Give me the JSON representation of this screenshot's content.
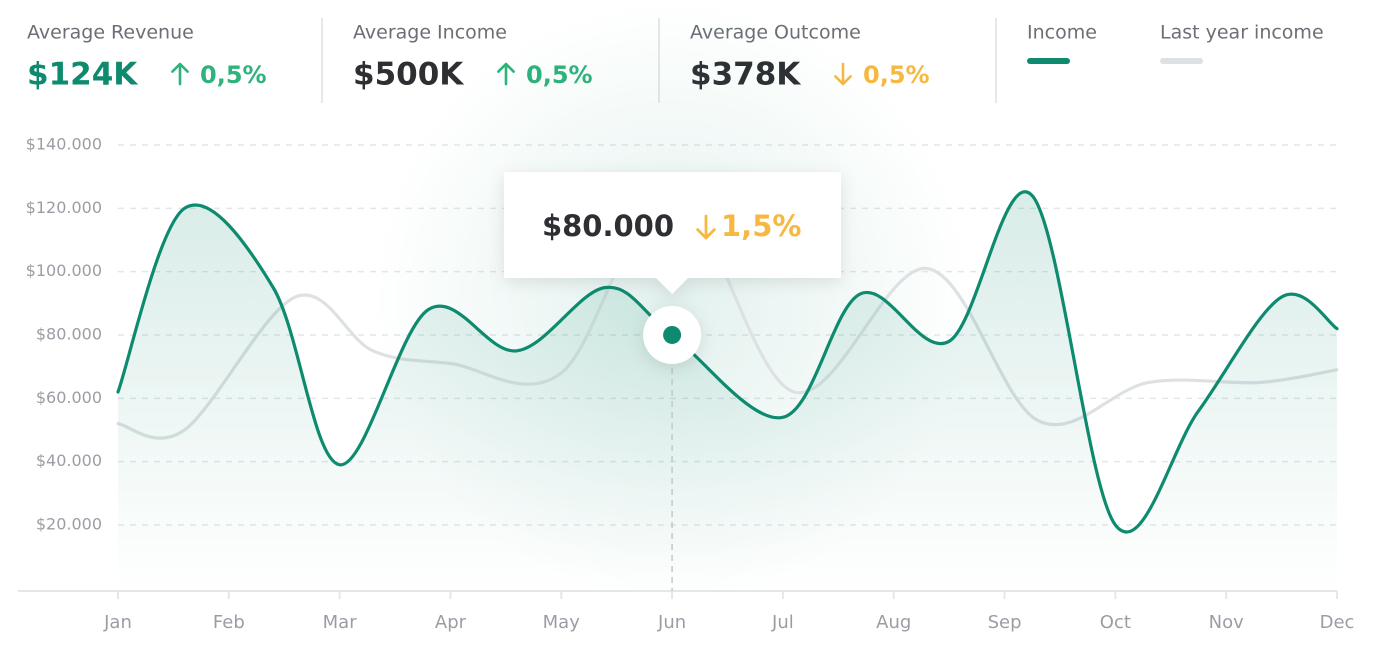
{
  "stats": [
    {
      "label": "Average Revenue",
      "value": "$124K",
      "change": "0,5%",
      "trend": "up",
      "color": "#0e8a6e"
    },
    {
      "label": "Average Income",
      "value": "$500K",
      "change": "0,5%",
      "trend": "up",
      "color": "#2d2f33"
    },
    {
      "label": "Average Outcome",
      "value": "$378K",
      "change": "0,5%",
      "trend": "down",
      "color": "#2d2f33"
    }
  ],
  "chart_data": {
    "type": "line",
    "xlim": [
      0,
      11
    ],
    "xticks": [
      {
        "value": 0,
        "label": "Jan"
      },
      {
        "value": 1,
        "label": "Feb"
      },
      {
        "value": 2,
        "label": "Mar"
      },
      {
        "value": 3,
        "label": "Apr"
      },
      {
        "value": 4,
        "label": "May"
      },
      {
        "value": 5,
        "label": "Jun"
      },
      {
        "value": 6,
        "label": "Jul"
      },
      {
        "value": 7,
        "label": "Aug"
      },
      {
        "value": 8,
        "label": "Sep"
      },
      {
        "value": 9,
        "label": "Oct"
      },
      {
        "value": 10,
        "label": "Nov"
      },
      {
        "value": 11,
        "label": "Dec"
      }
    ],
    "ylim": [
      0,
      140000
    ],
    "yticks": [
      {
        "value": 20000,
        "label": "$20.000"
      },
      {
        "value": 40000,
        "label": "$40.000"
      },
      {
        "value": 60000,
        "label": "$60.000"
      },
      {
        "value": 80000,
        "label": "$80.000"
      },
      {
        "value": 100000,
        "label": "$100.000"
      },
      {
        "value": 120000,
        "label": "$120.000"
      },
      {
        "value": 140000,
        "label": "$140.000"
      }
    ],
    "grid": true,
    "series": [
      {
        "name": "Income",
        "color": "#0e8a6e",
        "area": true,
        "x": [
          0,
          0.6,
          1.4,
          2.0,
          2.8,
          3.6,
          4.4,
          5.0,
          6.0,
          6.7,
          7.5,
          8.25,
          9.0,
          9.75,
          10.5,
          11
        ],
        "values": [
          62000,
          120000,
          95000,
          39000,
          88000,
          75000,
          95000,
          80000,
          54000,
          93000,
          78000,
          124000,
          20000,
          56000,
          92000,
          82000
        ]
      },
      {
        "name": "Last year income",
        "color": "#dde1e3",
        "x": [
          0,
          0.6,
          1.6,
          2.3,
          3.0,
          4.0,
          5.0,
          6.1,
          7.3,
          8.3,
          9.3,
          10.3,
          11
        ],
        "values": [
          52000,
          50000,
          92000,
          75000,
          71000,
          68000,
          125000,
          62000,
          101000,
          53000,
          65000,
          65000,
          69000
        ]
      }
    ],
    "tooltip": {
      "x": 5,
      "label": "$80.000",
      "change": "1,5%",
      "trend": "down"
    }
  }
}
